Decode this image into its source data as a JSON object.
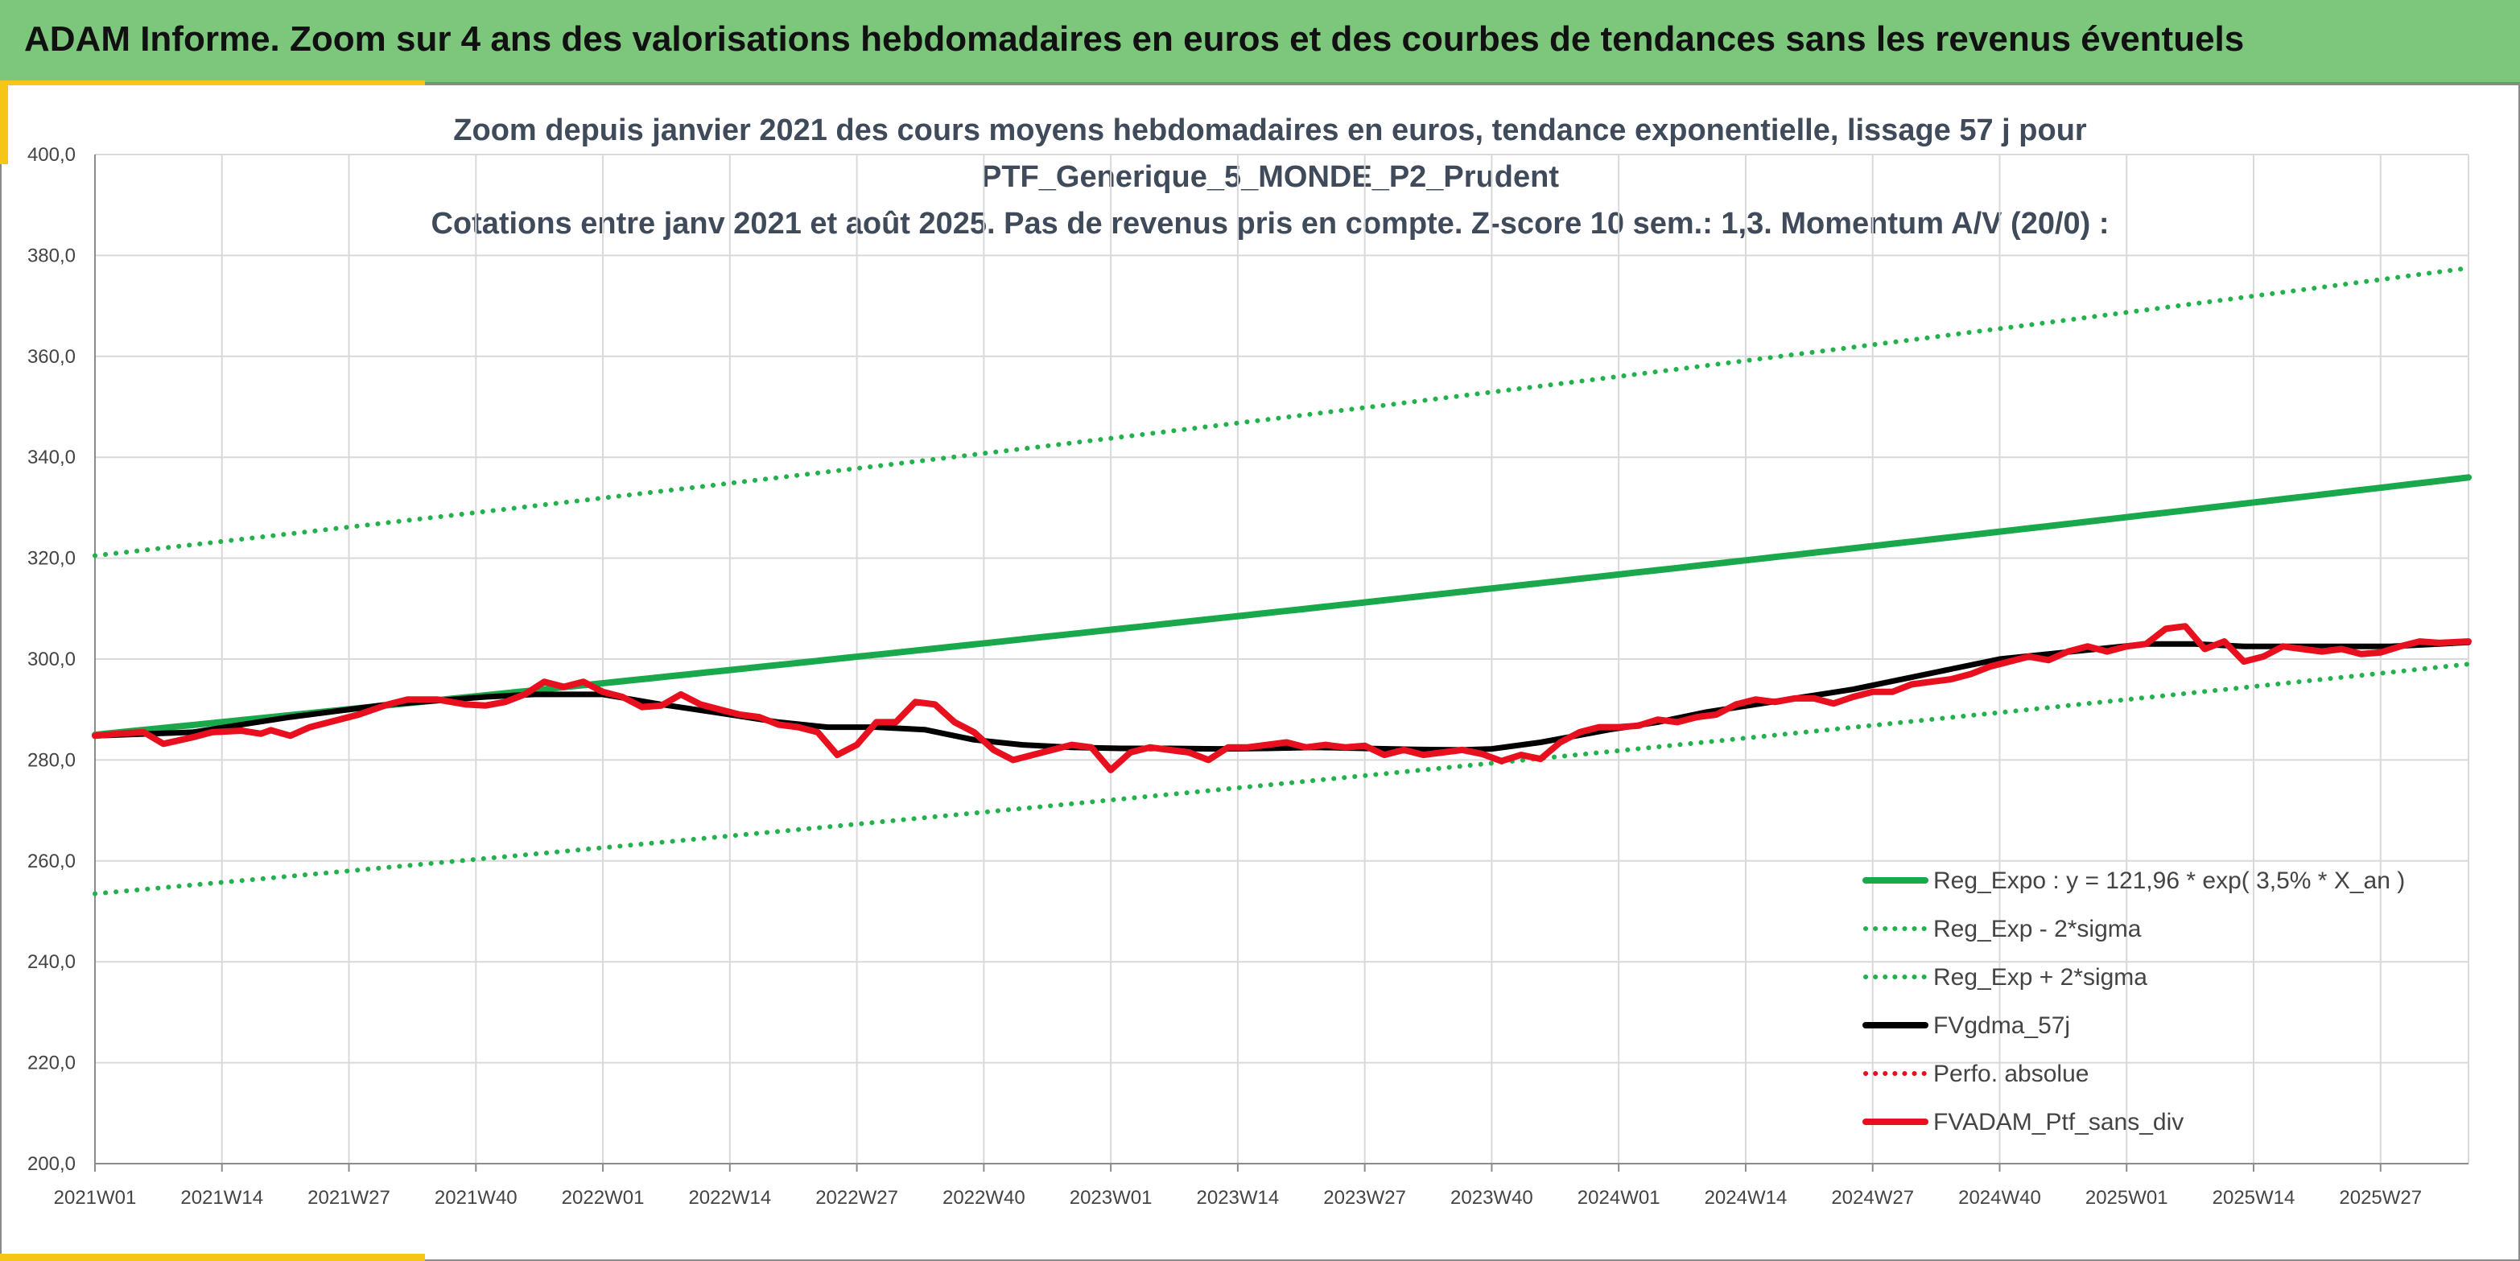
{
  "header": {
    "title": "ADAM Informe. Zoom sur 4 ans des valorisations hebdomadaires en euros et des courbes de tendances sans les revenus éventuels"
  },
  "colors": {
    "banner": "#7cc77c",
    "accent": "#f5c518",
    "reg_green": "#1aa84c",
    "sigma_green": "#22b14c",
    "red": "#e8101e",
    "black": "#000000"
  },
  "chart_data": {
    "type": "line",
    "title_lines": [
      "Zoom depuis janvier 2021 des cours moyens hebdomadaires en euros, tendance exponentielle, lissage 57 j pour",
      "PTF_Generique_5_MONDE_P2_Prudent",
      "Cotations entre janv 2021 et août 2025. Pas de revenus pris en compte. Z-score 10 sem.: 1,3. Momentum A/V (20/0) :"
    ],
    "ylim": [
      200,
      400
    ],
    "yticks": [
      "400,0",
      "380,0",
      "360,0",
      "340,0",
      "320,0",
      "300,0",
      "280,0",
      "260,0",
      "240,0",
      "220,0",
      "200,0"
    ],
    "x_range": [
      0,
      243
    ],
    "x_ticks": [
      {
        "label": "2021W01",
        "x": 0
      },
      {
        "label": "2021W14",
        "x": 13
      },
      {
        "label": "2021W27",
        "x": 26
      },
      {
        "label": "2021W40",
        "x": 39
      },
      {
        "label": "2022W01",
        "x": 52
      },
      {
        "label": "2022W14",
        "x": 65
      },
      {
        "label": "2022W27",
        "x": 78
      },
      {
        "label": "2022W40",
        "x": 91
      },
      {
        "label": "2023W01",
        "x": 104
      },
      {
        "label": "2023W14",
        "x": 117
      },
      {
        "label": "2023W27",
        "x": 130
      },
      {
        "label": "2023W40",
        "x": 143
      },
      {
        "label": "2024W01",
        "x": 156
      },
      {
        "label": "2024W14",
        "x": 169
      },
      {
        "label": "2024W27",
        "x": 182
      },
      {
        "label": "2024W40",
        "x": 195
      },
      {
        "label": "2025W01",
        "x": 208
      },
      {
        "label": "2025W14",
        "x": 221
      },
      {
        "label": "2025W27",
        "x": 234
      }
    ],
    "grid": true,
    "legend_position": "bottom-right",
    "series": [
      {
        "name": "Reg_Expo : y = 121,96 * exp( 3,5% *  X_an )",
        "style": "solid",
        "color": "#1aa84c",
        "x": [
          0,
          243
        ],
        "y": [
          285,
          336
        ],
        "curve": "exp"
      },
      {
        "name": "Reg_Exp - 2*sigma",
        "style": "dotted",
        "color": "#22b14c",
        "x": [
          0,
          243
        ],
        "y": [
          253.5,
          299
        ],
        "curve": "exp"
      },
      {
        "name": "Reg_Exp + 2*sigma",
        "style": "dotted",
        "color": "#22b14c",
        "x": [
          0,
          243
        ],
        "y": [
          320.5,
          377.5
        ],
        "curve": "exp"
      },
      {
        "name": "FVgdma_57j",
        "style": "solid",
        "color": "#000000",
        "x": [
          0,
          10,
          20,
          30,
          40,
          45,
          52,
          58,
          65,
          70,
          75,
          80,
          85,
          90,
          95,
          100,
          105,
          110,
          115,
          120,
          125,
          130,
          135,
          140,
          143,
          148,
          155,
          160,
          165,
          170,
          175,
          180,
          185,
          190,
          195,
          200,
          205,
          210,
          215,
          220,
          225,
          230,
          235,
          240,
          243
        ],
        "y": [
          284.8,
          285.5,
          288.5,
          291,
          292.5,
          293,
          293,
          291,
          289,
          287.5,
          286.5,
          286.5,
          286,
          284,
          283,
          282.5,
          282.3,
          282.3,
          282.2,
          282.3,
          282.5,
          282.3,
          282.1,
          282,
          282.2,
          283.5,
          286,
          287.5,
          289.5,
          291,
          292.5,
          294,
          296,
          298,
          300,
          301,
          302,
          303,
          303,
          302.5,
          302.5,
          302.5,
          302.5,
          303,
          303.3
        ]
      },
      {
        "name": "Perfo. absolue",
        "style": "dotted",
        "color": "#e8101e",
        "x": [],
        "y": []
      },
      {
        "name": "FVADAM_Ptf_sans_div",
        "style": "solid",
        "color": "#e8101e",
        "x": [
          0,
          3,
          5,
          7,
          10,
          12,
          15,
          17,
          18,
          20,
          22,
          25,
          27,
          30,
          32,
          35,
          38,
          40,
          42,
          44,
          46,
          48,
          50,
          52,
          54,
          56,
          58,
          60,
          62,
          64,
          66,
          68,
          70,
          72,
          74,
          76,
          78,
          80,
          82,
          84,
          86,
          88,
          90,
          92,
          94,
          96,
          98,
          100,
          102,
          104,
          106,
          108,
          110,
          112,
          114,
          116,
          118,
          120,
          122,
          124,
          126,
          128,
          130,
          132,
          134,
          136,
          138,
          140,
          142,
          144,
          146,
          148,
          150,
          152,
          154,
          156,
          158,
          160,
          162,
          164,
          166,
          168,
          170,
          172,
          174,
          176,
          178,
          180,
          182,
          184,
          186,
          188,
          190,
          192,
          194,
          196,
          198,
          200,
          202,
          204,
          206,
          208,
          210,
          212,
          214,
          216,
          218,
          220,
          222,
          224,
          226,
          228,
          230,
          232,
          234,
          236,
          238,
          240,
          243
        ],
        "y": [
          284.8,
          285.3,
          285.5,
          283.2,
          284.5,
          285.5,
          285.8,
          285.2,
          285.9,
          284.8,
          286.5,
          288,
          289,
          291,
          292,
          292,
          291,
          290.8,
          291.5,
          293,
          295.5,
          294.5,
          295.5,
          293.5,
          292.5,
          290.5,
          290.8,
          293,
          291,
          290,
          289,
          288.5,
          287,
          286.5,
          285.5,
          281,
          283,
          287.5,
          287.5,
          291.5,
          291,
          287.5,
          285.5,
          282,
          280,
          281,
          282,
          283,
          282.5,
          278,
          281.5,
          282.5,
          282,
          281.5,
          280,
          282.5,
          282.5,
          283,
          283.5,
          282.5,
          283,
          282.5,
          282.8,
          281,
          282,
          281,
          281.5,
          282,
          281.2,
          279.8,
          281,
          280.2,
          283.5,
          285.5,
          286.5,
          286.5,
          286.8,
          288,
          287.5,
          288.5,
          289,
          291,
          292,
          291.5,
          292.2,
          292.2,
          291.2,
          292.5,
          293.5,
          293.5,
          295,
          295.5,
          296,
          297,
          298.5,
          299.5,
          300.5,
          299.8,
          301.5,
          302.5,
          301.5,
          302.5,
          303,
          306,
          306.5,
          302,
          303.5,
          299.5,
          300.5,
          302.5,
          302,
          301.5,
          302,
          301,
          301.3,
          302.5,
          303.5,
          303.2,
          303.5
        ]
      }
    ]
  }
}
